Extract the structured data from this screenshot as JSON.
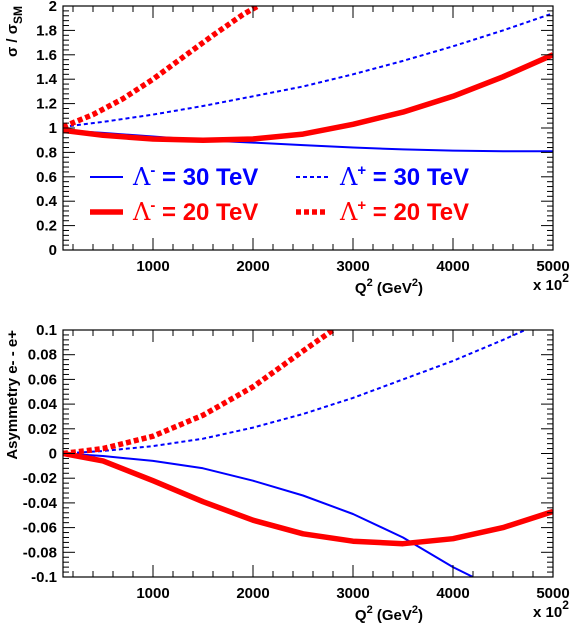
{
  "chart_data": [
    {
      "type": "line",
      "xlabel": "Q²  (GeV²)",
      "xlabel_parts": {
        "q": "Q",
        "q_sup": "2",
        "unit_open": " (GeV",
        "unit_sup": "2",
        "unit_close": ")"
      },
      "ylabel": "σ / σ_SM",
      "ylabel_parts": {
        "main": "σ / σ",
        "sub": "SM"
      },
      "x_multiplier": {
        "text": "x 10",
        "sup": "2"
      },
      "xlim": [
        100,
        5000
      ],
      "ylim": [
        0,
        2
      ],
      "xticks": [
        1000,
        2000,
        3000,
        4000,
        5000
      ],
      "yticks": [
        0,
        0.2,
        0.4,
        0.6,
        0.8,
        1,
        1.2,
        1.4,
        1.6,
        1.8,
        2
      ],
      "ytick_labels": [
        "0",
        "0.2",
        "0.4",
        "0.6",
        "0.8",
        "1",
        "1.2",
        "1.4",
        "1.6",
        "1.8",
        "2"
      ],
      "legend": [
        {
          "label": "Λ⁻ = 30 TeV",
          "lambda": "Λ",
          "sup": "-",
          "rest": " = 30 TeV",
          "color": "#0000ff",
          "dash": "solid",
          "width": "thin"
        },
        {
          "label": "Λ⁺ = 30 TeV",
          "lambda": "Λ",
          "sup": "+",
          "rest": " = 30 TeV",
          "color": "#0000ff",
          "dash": "dotted",
          "width": "thin"
        },
        {
          "label": "Λ⁻ = 20 TeV",
          "lambda": "Λ",
          "sup": "-",
          "rest": " = 20 TeV",
          "color": "#ff0000",
          "dash": "solid",
          "width": "thick"
        },
        {
          "label": "Λ⁺ = 20 TeV",
          "lambda": "Λ",
          "sup": "+",
          "rest": " = 20 TeV",
          "color": "#ff0000",
          "dash": "dotted",
          "width": "thick"
        }
      ],
      "series": [
        {
          "key": "blue-solid",
          "color": "#0000ff",
          "dash": "solid",
          "width": "thin",
          "x": [
            100,
            500,
            1000,
            1500,
            2000,
            2500,
            3000,
            3500,
            4000,
            4500,
            5000
          ],
          "y": [
            0.98,
            0.96,
            0.93,
            0.9,
            0.88,
            0.86,
            0.84,
            0.825,
            0.815,
            0.81,
            0.81
          ]
        },
        {
          "key": "blue-dotted",
          "color": "#0000ff",
          "dash": "dotted",
          "width": "thin",
          "x": [
            100,
            500,
            1000,
            1500,
            2000,
            2500,
            3000,
            3500,
            4000,
            4500,
            5000
          ],
          "y": [
            1.01,
            1.05,
            1.11,
            1.18,
            1.26,
            1.34,
            1.44,
            1.55,
            1.67,
            1.8,
            1.94
          ]
        },
        {
          "key": "red-solid",
          "color": "#ff0000",
          "dash": "solid",
          "width": "thick",
          "x": [
            100,
            500,
            1000,
            1500,
            2000,
            2500,
            3000,
            3500,
            4000,
            4500,
            5000
          ],
          "y": [
            0.98,
            0.94,
            0.91,
            0.9,
            0.91,
            0.95,
            1.03,
            1.13,
            1.26,
            1.42,
            1.6
          ]
        },
        {
          "key": "red-dotted",
          "color": "#ff0000",
          "dash": "dotted",
          "width": "thick",
          "x": [
            100,
            400,
            700,
            1000,
            1300,
            1600,
            1900,
            2050
          ],
          "y": [
            1.01,
            1.11,
            1.24,
            1.4,
            1.58,
            1.76,
            1.93,
            2.0
          ]
        }
      ]
    },
    {
      "type": "line",
      "xlabel": "Q²  (GeV²)",
      "xlabel_parts": {
        "q": "Q",
        "q_sup": "2",
        "unit_open": " (GeV",
        "unit_sup": "2",
        "unit_close": ")"
      },
      "ylabel": "Asymmetry e- - e+",
      "x_multiplier": {
        "text": "x 10",
        "sup": "2"
      },
      "xlim": [
        100,
        5000
      ],
      "ylim": [
        -0.1,
        0.1
      ],
      "xticks": [
        1000,
        2000,
        3000,
        4000,
        5000
      ],
      "yticks": [
        -0.1,
        -0.08,
        -0.06,
        -0.04,
        -0.02,
        0,
        0.02,
        0.04,
        0.06,
        0.08,
        0.1
      ],
      "ytick_labels": [
        "-0.1",
        "-0.08",
        "-0.06",
        "-0.04",
        "-0.02",
        "0",
        "0.02",
        "0.04",
        "0.06",
        "0.08",
        "0.1"
      ],
      "series": [
        {
          "key": "blue-solid",
          "color": "#0000ff",
          "dash": "solid",
          "width": "thin",
          "x": [
            100,
            500,
            1000,
            1500,
            2000,
            2500,
            3000,
            3500,
            4000,
            4200
          ],
          "y": [
            0.0,
            -0.002,
            -0.006,
            -0.012,
            -0.022,
            -0.034,
            -0.049,
            -0.068,
            -0.092,
            -0.1
          ]
        },
        {
          "key": "blue-dotted",
          "color": "#0000ff",
          "dash": "dotted",
          "width": "thin",
          "x": [
            100,
            500,
            1000,
            1500,
            2000,
            2500,
            3000,
            3500,
            4000,
            4500,
            5000
          ],
          "y": [
            0.0,
            0.002,
            0.006,
            0.012,
            0.021,
            0.032,
            0.045,
            0.06,
            0.075,
            0.092,
            0.11
          ]
        },
        {
          "key": "red-solid",
          "color": "#ff0000",
          "dash": "solid",
          "width": "thick",
          "x": [
            100,
            500,
            1000,
            1500,
            2000,
            2500,
            3000,
            3500,
            4000,
            4500,
            5000
          ],
          "y": [
            0.0,
            -0.006,
            -0.022,
            -0.039,
            -0.054,
            -0.065,
            -0.071,
            -0.073,
            -0.069,
            -0.06,
            -0.047
          ]
        },
        {
          "key": "red-dotted",
          "color": "#ff0000",
          "dash": "dotted",
          "width": "thick",
          "x": [
            100,
            500,
            1000,
            1500,
            2000,
            2500,
            2800
          ],
          "y": [
            0.0,
            0.004,
            0.014,
            0.031,
            0.054,
            0.083,
            0.1
          ]
        }
      ]
    }
  ]
}
